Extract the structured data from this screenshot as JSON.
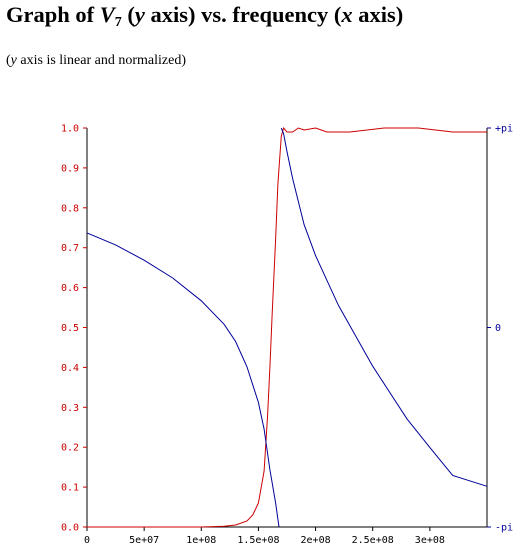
{
  "title": {
    "prefix": "Graph of ",
    "var": "V",
    "sub": "7",
    "yaxis": "y",
    "yaxis_rest": " axis) vs. frequency (",
    "xaxis": "x",
    "tail": " axis)"
  },
  "subtitle": {
    "var": "y",
    "text": " axis is linear and normalized)"
  },
  "chart_data": {
    "type": "line",
    "xlabel": "",
    "ylabel": "",
    "xlim": [
      0,
      350000000
    ],
    "ylim": [
      0,
      1
    ],
    "y2lim": [
      -3.14159,
      3.14159
    ],
    "x_ticks": [
      {
        "value": 0,
        "label": "0"
      },
      {
        "value": 50000000,
        "label": "5e+07"
      },
      {
        "value": 100000000,
        "label": "1e+08"
      },
      {
        "value": 150000000,
        "label": "1.5e+08"
      },
      {
        "value": 200000000,
        "label": "2e+08"
      },
      {
        "value": 250000000,
        "label": "2.5e+08"
      },
      {
        "value": 300000000,
        "label": "3e+08"
      }
    ],
    "y_ticks": [
      {
        "value": 0.0,
        "label": "0.0"
      },
      {
        "value": 0.1,
        "label": "0.1"
      },
      {
        "value": 0.2,
        "label": "0.2"
      },
      {
        "value": 0.3,
        "label": "0.3"
      },
      {
        "value": 0.4,
        "label": "0.4"
      },
      {
        "value": 0.5,
        "label": "0.5"
      },
      {
        "value": 0.6,
        "label": "0.6"
      },
      {
        "value": 0.7,
        "label": "0.7"
      },
      {
        "value": 0.8,
        "label": "0.8"
      },
      {
        "value": 0.9,
        "label": "0.9"
      },
      {
        "value": 1.0,
        "label": "1.0"
      }
    ],
    "y2_ticks": [
      {
        "value": 3.14159,
        "label": "+pi"
      },
      {
        "value": 0,
        "label": "0"
      },
      {
        "value": -3.14159,
        "label": "-pi"
      }
    ],
    "grid": false,
    "colors": {
      "magnitude": "#cc0000",
      "phase": "#000099",
      "axis": "#000000"
    },
    "series": [
      {
        "axis": "left",
        "color": "#cc0000",
        "x": [
          0,
          50000000,
          100000000,
          120000000,
          130000000,
          140000000,
          145000000,
          150000000,
          155000000,
          158000000,
          160000000,
          162000000,
          165000000,
          167000000,
          170000000,
          172000000,
          175000000,
          180000000,
          185000000,
          190000000,
          200000000,
          210000000,
          230000000,
          260000000,
          290000000,
          320000000,
          350000000
        ],
        "values": [
          0.0,
          0.0,
          0.0,
          0.002,
          0.005,
          0.015,
          0.03,
          0.06,
          0.14,
          0.28,
          0.4,
          0.53,
          0.72,
          0.86,
          0.98,
          1.0,
          0.99,
          0.99,
          1.0,
          0.995,
          1.0,
          0.99,
          0.99,
          1.0,
          1.0,
          0.99,
          0.99
        ]
      },
      {
        "axis": "right",
        "color": "#000099",
        "x": [
          0,
          25000000,
          50000000,
          75000000,
          100000000,
          120000000,
          130000000,
          140000000,
          150000000,
          155000000,
          160000000,
          165000000,
          168000000,
          170000000,
          172000000,
          175000000,
          180000000,
          190000000,
          200000000,
          220000000,
          250000000,
          280000000,
          300000000,
          320000000,
          350000000
        ],
        "values": [
          1.49,
          1.3,
          1.06,
          0.78,
          0.42,
          0.05,
          -0.22,
          -0.62,
          -1.18,
          -1.6,
          -2.24,
          -2.76,
          -3.14,
          3.14,
          3.05,
          2.77,
          2.34,
          1.62,
          1.13,
          0.35,
          -0.61,
          -1.44,
          -1.89,
          -2.33,
          -2.5
        ]
      }
    ]
  }
}
